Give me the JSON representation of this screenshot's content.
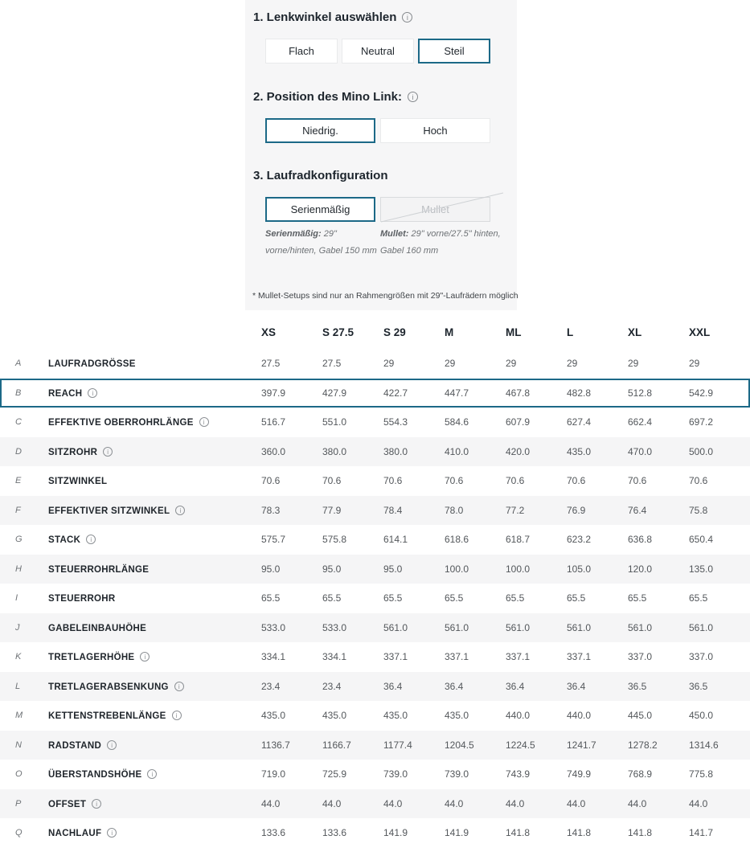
{
  "accent_color": "#1c6987",
  "stripe_color": "#f5f5f6",
  "config": {
    "sections": [
      {
        "title": "1. Lenkwinkel auswählen",
        "has_info": true,
        "options": [
          {
            "label": "Flach",
            "state": "default"
          },
          {
            "label": "Neutral",
            "state": "default"
          },
          {
            "label": "Steil",
            "state": "selected"
          }
        ]
      },
      {
        "title": "2. Position des Mino Link:",
        "has_info": true,
        "options": [
          {
            "label": "Niedrig.",
            "state": "selected"
          },
          {
            "label": "Hoch",
            "state": "default"
          }
        ]
      },
      {
        "title": "3. Laufradkonfiguration",
        "has_info": false,
        "options": [
          {
            "label": "Serienmäßig",
            "state": "selected"
          },
          {
            "label": "Mullet",
            "state": "disabled"
          }
        ]
      }
    ],
    "captions": [
      {
        "lead": "Serienmäßig:",
        "text": "29\" vorne/hinten, Gabel 150 mm"
      },
      {
        "lead": "Mullet:",
        "text": "29\" vorne/27.5\" hinten, Gabel 160 mm"
      }
    ],
    "footnote": "* Mullet-Setups sind nur an Rahmengrößen mit 29\"-Laufrädern möglich"
  },
  "geometry_table": {
    "columns": [
      "XS",
      "S 27.5",
      "S 29",
      "M",
      "ML",
      "L",
      "XL",
      "XXL"
    ],
    "rows": [
      {
        "letter": "A",
        "label": "LAUFRADGRÖSSE",
        "info": false,
        "highlight": false,
        "values": [
          "27.5",
          "27.5",
          "29",
          "29",
          "29",
          "29",
          "29",
          "29"
        ]
      },
      {
        "letter": "B",
        "label": "REACH",
        "info": true,
        "highlight": true,
        "values": [
          "397.9",
          "427.9",
          "422.7",
          "447.7",
          "467.8",
          "482.8",
          "512.8",
          "542.9"
        ]
      },
      {
        "letter": "C",
        "label": "EFFEKTIVE OBERROHRLÄNGE",
        "info": true,
        "highlight": false,
        "values": [
          "516.7",
          "551.0",
          "554.3",
          "584.6",
          "607.9",
          "627.4",
          "662.4",
          "697.2"
        ]
      },
      {
        "letter": "D",
        "label": "SITZROHR",
        "info": true,
        "highlight": false,
        "values": [
          "360.0",
          "380.0",
          "380.0",
          "410.0",
          "420.0",
          "435.0",
          "470.0",
          "500.0"
        ]
      },
      {
        "letter": "E",
        "label": "SITZWINKEL",
        "info": false,
        "highlight": false,
        "values": [
          "70.6",
          "70.6",
          "70.6",
          "70.6",
          "70.6",
          "70.6",
          "70.6",
          "70.6"
        ]
      },
      {
        "letter": "F",
        "label": "EFFEKTIVER SITZWINKEL",
        "info": true,
        "highlight": false,
        "values": [
          "78.3",
          "77.9",
          "78.4",
          "78.0",
          "77.2",
          "76.9",
          "76.4",
          "75.8"
        ]
      },
      {
        "letter": "G",
        "label": "STACK",
        "info": true,
        "highlight": false,
        "values": [
          "575.7",
          "575.8",
          "614.1",
          "618.6",
          "618.7",
          "623.2",
          "636.8",
          "650.4"
        ]
      },
      {
        "letter": "H",
        "label": "STEUERROHRLÄNGE",
        "info": false,
        "highlight": false,
        "values": [
          "95.0",
          "95.0",
          "95.0",
          "100.0",
          "100.0",
          "105.0",
          "120.0",
          "135.0"
        ]
      },
      {
        "letter": "I",
        "label": "STEUERROHR",
        "info": false,
        "highlight": false,
        "values": [
          "65.5",
          "65.5",
          "65.5",
          "65.5",
          "65.5",
          "65.5",
          "65.5",
          "65.5"
        ]
      },
      {
        "letter": "J",
        "label": "GABELEINBAUHÖHE",
        "info": false,
        "highlight": false,
        "values": [
          "533.0",
          "533.0",
          "561.0",
          "561.0",
          "561.0",
          "561.0",
          "561.0",
          "561.0"
        ]
      },
      {
        "letter": "K",
        "label": "TRETLAGERHÖHE",
        "info": true,
        "highlight": false,
        "values": [
          "334.1",
          "334.1",
          "337.1",
          "337.1",
          "337.1",
          "337.1",
          "337.0",
          "337.0"
        ]
      },
      {
        "letter": "L",
        "label": "TRETLAGERABSENKUNG",
        "info": true,
        "highlight": false,
        "values": [
          "23.4",
          "23.4",
          "36.4",
          "36.4",
          "36.4",
          "36.4",
          "36.5",
          "36.5"
        ]
      },
      {
        "letter": "M",
        "label": "KETTENSTREBENLÄNGE",
        "info": true,
        "highlight": false,
        "values": [
          "435.0",
          "435.0",
          "435.0",
          "435.0",
          "440.0",
          "440.0",
          "445.0",
          "450.0"
        ]
      },
      {
        "letter": "N",
        "label": "RADSTAND",
        "info": true,
        "highlight": false,
        "values": [
          "1136.7",
          "1166.7",
          "1177.4",
          "1204.5",
          "1224.5",
          "1241.7",
          "1278.2",
          "1314.6"
        ]
      },
      {
        "letter": "O",
        "label": "ÜBERSTANDSHÖHE",
        "info": true,
        "highlight": false,
        "values": [
          "719.0",
          "725.9",
          "739.0",
          "739.0",
          "743.9",
          "749.9",
          "768.9",
          "775.8"
        ]
      },
      {
        "letter": "P",
        "label": "OFFSET",
        "info": true,
        "highlight": false,
        "values": [
          "44.0",
          "44.0",
          "44.0",
          "44.0",
          "44.0",
          "44.0",
          "44.0",
          "44.0"
        ]
      },
      {
        "letter": "Q",
        "label": "NACHLAUF",
        "info": true,
        "highlight": false,
        "values": [
          "133.6",
          "133.6",
          "141.9",
          "141.9",
          "141.8",
          "141.8",
          "141.8",
          "141.7"
        ]
      }
    ]
  }
}
